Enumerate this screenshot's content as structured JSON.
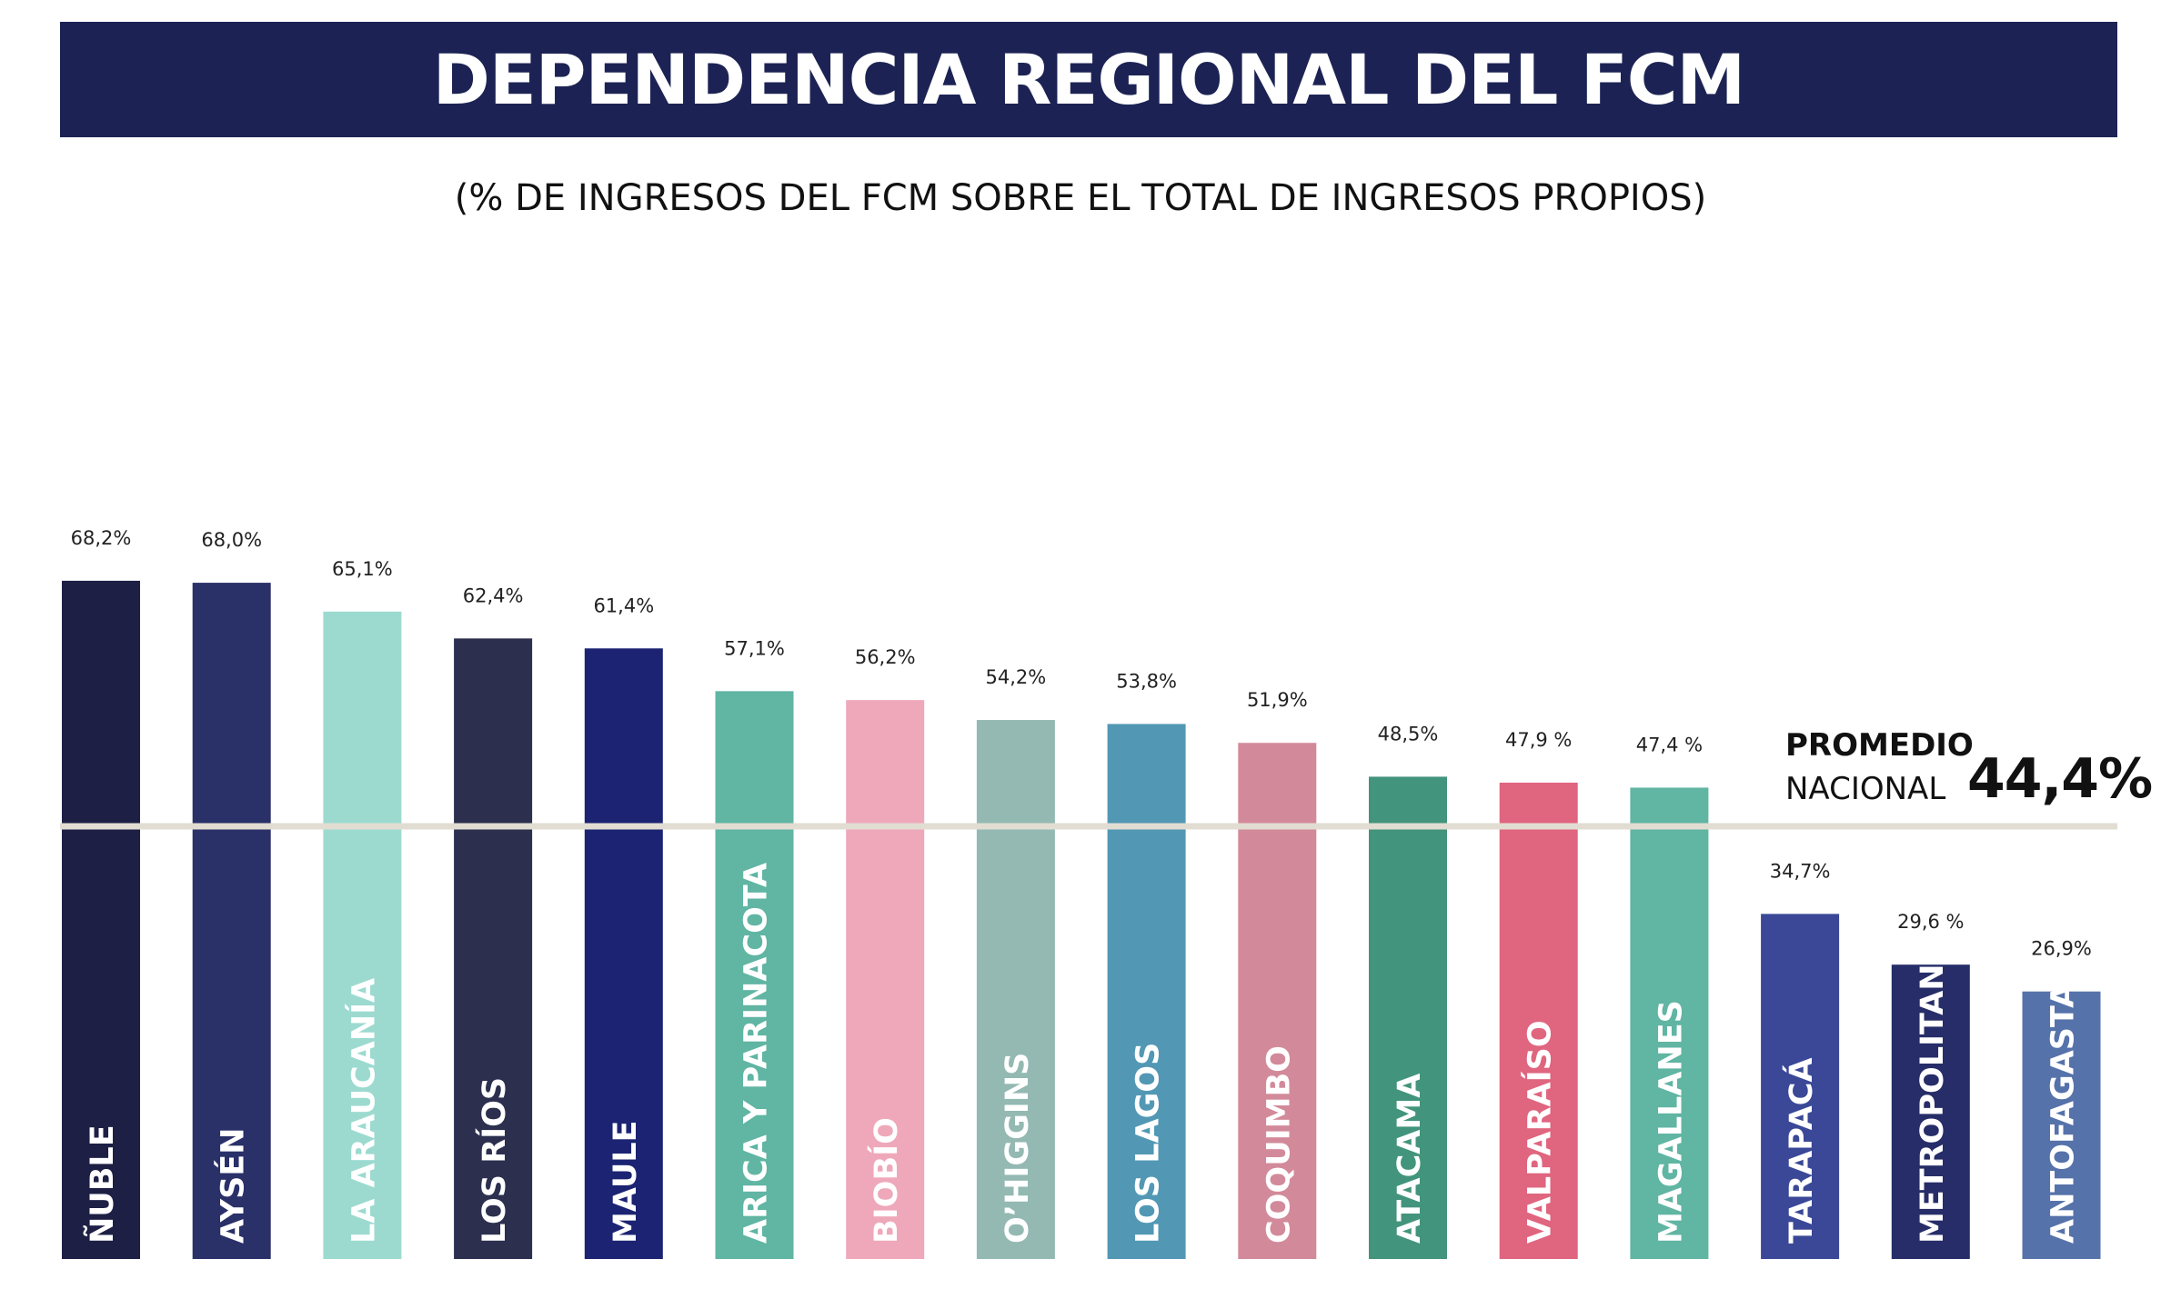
{
  "header": {
    "title": "DEPENDENCIA REGIONAL DEL FCM",
    "subtitle": "(% DE INGRESOS DEL FCM SOBRE EL TOTAL DE INGRESOS PROPIOS)",
    "banner_color": "#1c2354"
  },
  "average": {
    "line1": "PROMEDIO",
    "line2": "NACIONAL",
    "value_label": "44,4%",
    "value": 44.4,
    "line_color": "#e2ddd2"
  },
  "chart_data": {
    "type": "bar",
    "categories": [
      "ÑUBLE",
      "AYSÉN",
      "LA ARAUCANÍA",
      "LOS RÍOS",
      "MAULE",
      "ARICA Y PARINACOTA",
      "BIOBÍO",
      "O’HIGGINS",
      "LOS LAGOS",
      "COQUIMBO",
      "ATACAMA",
      "VALPARAÍSO",
      "MAGALLANES",
      "TARAPACÁ",
      "METROPOLITANA",
      "ANTOFAGASTA"
    ],
    "values": [
      68.2,
      68.0,
      65.1,
      62.4,
      61.4,
      57.1,
      56.2,
      54.2,
      53.8,
      51.9,
      48.5,
      47.9,
      47.4,
      34.7,
      29.6,
      26.9
    ],
    "value_labels": [
      "68,2%",
      "68,0%",
      "65,1%",
      "62,4%",
      "61,4%",
      "57,1%",
      "56,2%",
      "54,2%",
      "53,8%",
      "51,9%",
      "48,5%",
      "47,9 %",
      "47,4 %",
      "34,7%",
      "29,6 %",
      "26,9%"
    ],
    "colors": [
      "#1d1f45",
      "#2a3068",
      "#9cdad0",
      "#2c2f4e",
      "#1b2372",
      "#60b5a3",
      "#eea8ba",
      "#93b9b2",
      "#5298b4",
      "#d28a9a",
      "#43947c",
      "#e0657f",
      "#60b5a3",
      "#3a4897",
      "#272d68",
      "#5672aa"
    ],
    "ylim": [
      0,
      70
    ],
    "title": "DEPENDENCIA REGIONAL DEL FCM",
    "subtitle": "(% DE INGRESOS DEL FCM SOBRE EL TOTAL DE INGRESOS PROPIOS)",
    "xlabel": "",
    "ylabel": "",
    "grid": false,
    "reference_line": {
      "label": "PROMEDIO NACIONAL",
      "value": 44.4
    }
  }
}
